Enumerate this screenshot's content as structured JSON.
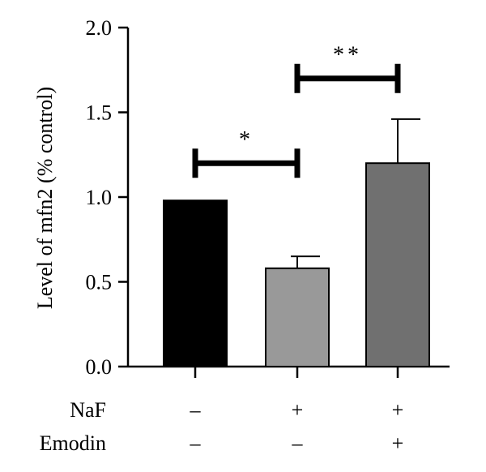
{
  "chart_data": {
    "type": "bar",
    "ylabel": "Level of mfn2 (% control)",
    "ylim": [
      0,
      2.0
    ],
    "yticks": [
      "0.0",
      "0.5",
      "1.0",
      "1.5",
      "2.0"
    ],
    "grid": false,
    "bars": [
      {
        "value": 0.98,
        "error": 0.0,
        "color": "#000000"
      },
      {
        "value": 0.58,
        "error": 0.07,
        "color": "#999999"
      },
      {
        "value": 1.2,
        "error": 0.26,
        "color": "#707070"
      }
    ],
    "conditions": [
      {
        "label": "NaF",
        "signs": [
          "–",
          "+",
          "+"
        ]
      },
      {
        "label": "Emodin",
        "signs": [
          "–",
          "–",
          "+"
        ]
      }
    ],
    "significance": [
      {
        "from": 0,
        "to": 1,
        "label": "*",
        "y": 1.2
      },
      {
        "from": 1,
        "to": 2,
        "label": "**",
        "y": 1.7
      }
    ]
  }
}
